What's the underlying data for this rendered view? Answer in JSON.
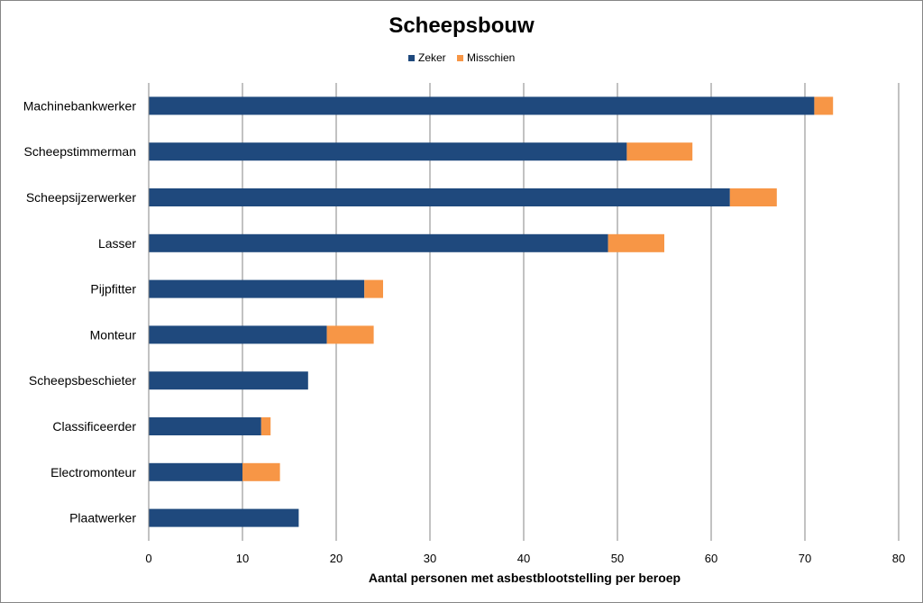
{
  "chart_data": {
    "type": "bar",
    "orientation": "horizontal",
    "stacked": true,
    "title": "Scheepsbouw",
    "xlabel": "Aantal personen met asbestblootstelling per beroep",
    "ylabel": "",
    "xlim": [
      0,
      80
    ],
    "xticks": [
      "0",
      "10",
      "20",
      "30",
      "40",
      "50",
      "60",
      "70",
      "80"
    ],
    "grid": true,
    "legend_position": "top",
    "categories": [
      "Machinebankwerker",
      "Scheepstimmerman",
      "Scheepsijzerwerker",
      "Lasser",
      "Pijpfitter",
      "Monteur",
      "Scheepsbeschieter",
      "Classificeerder",
      "Electromonteur",
      "Plaatwerker"
    ],
    "series": [
      {
        "name": "Zeker",
        "color": "#1F497D",
        "values": [
          71,
          51,
          62,
          49,
          23,
          19,
          17,
          12,
          10,
          16
        ]
      },
      {
        "name": "Misschien",
        "color": "#F79646",
        "values": [
          2,
          7,
          5,
          6,
          2,
          5,
          0,
          1,
          4,
          0
        ]
      }
    ]
  }
}
